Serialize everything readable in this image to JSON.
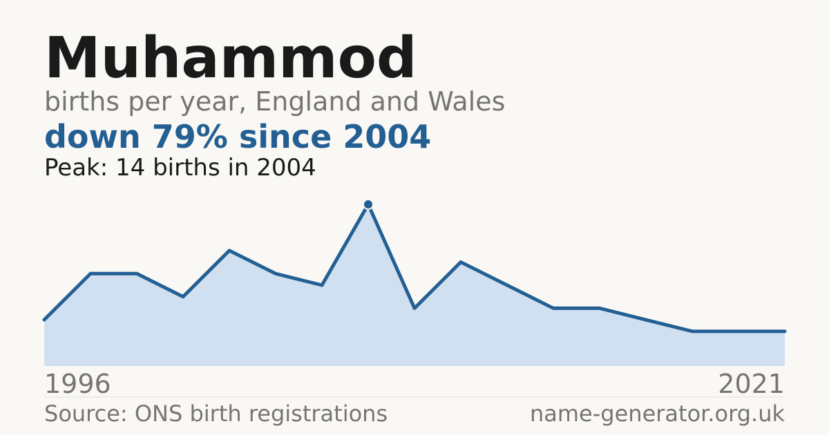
{
  "chart_data": {
    "type": "area",
    "title": "Muhammod",
    "subtitle": "births per year, England and Wales",
    "headline": "down 79% since 2004",
    "annotation": "Peak: 14 births in 2004",
    "source": "Source: ONS birth registrations",
    "site": "name-generator.org.uk",
    "categories": [
      "1996",
      null,
      null,
      null,
      null,
      null,
      null,
      null,
      null,
      null,
      null,
      null,
      null,
      null,
      null,
      null,
      "2021"
    ],
    "values": [
      4,
      8,
      8,
      6,
      10,
      8,
      7,
      14,
      5,
      9,
      7,
      5,
      5,
      4,
      3,
      3,
      3
    ],
    "ylim": [
      0,
      14
    ],
    "color": "#245f94",
    "fill": "#d0e0f0"
  }
}
